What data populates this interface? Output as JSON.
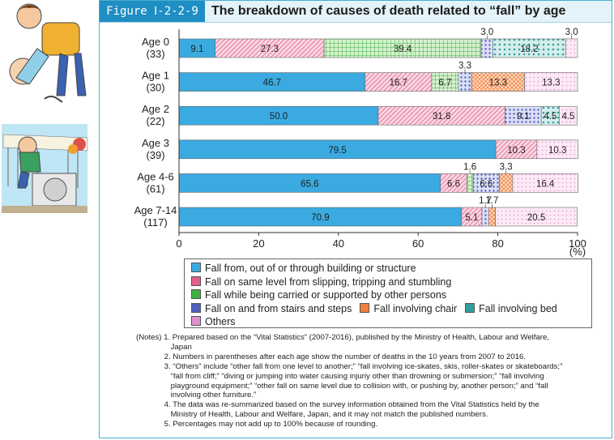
{
  "header": {
    "figure_label": "Figure Ⅰ-2-2-9",
    "title": "The breakdown of causes of death related to “fall” by age"
  },
  "chart_data": {
    "type": "stacked-bar-horizontal",
    "title": "The breakdown of causes of death related to “fall” by age",
    "xlabel": "(%)",
    "xlim": [
      0,
      100
    ],
    "xticks": [
      0,
      20,
      40,
      60,
      80,
      100
    ],
    "categories": [
      {
        "label": "Age 0",
        "count": "(33)"
      },
      {
        "label": "Age 1",
        "count": "(30)"
      },
      {
        "label": "Age 2",
        "count": "(22)"
      },
      {
        "label": "Age 3",
        "count": "(39)"
      },
      {
        "label": "Age 4-6",
        "count": "(61)"
      },
      {
        "label": "Age 7-14",
        "count": "(117)"
      }
    ],
    "series": [
      {
        "name": "Fall from, out of or through building or structure",
        "color": "#3aaae0",
        "pattern": "solid",
        "values": [
          9.1,
          46.7,
          50.0,
          79.5,
          65.6,
          70.9
        ]
      },
      {
        "name": "Fall on same level from slipping, tripping and stumbling",
        "color": "#e0608a",
        "pattern": "diagonal",
        "values": [
          27.3,
          16.7,
          31.8,
          10.3,
          6.6,
          5.1
        ]
      },
      {
        "name": "Fall while being carried or supported by other persons",
        "color": "#40b040",
        "pattern": "grid",
        "values": [
          39.4,
          6.7,
          0,
          0,
          1.6,
          0
        ]
      },
      {
        "name": "Fall on and from stairs and steps",
        "color": "#5060c0",
        "pattern": "dots",
        "values": [
          3.0,
          3.3,
          9.1,
          0,
          6.6,
          1.7
        ]
      },
      {
        "name": "Fall involving chair",
        "color": "#f08040",
        "pattern": "cross",
        "values": [
          0,
          13.3,
          0,
          0,
          3.3,
          1.7
        ]
      },
      {
        "name": "Fall involving bed",
        "color": "#30a0a0",
        "pattern": "dense-dots",
        "values": [
          18.2,
          0,
          4.5,
          0,
          0,
          0
        ]
      },
      {
        "name": "Others",
        "color": "#e090d0",
        "pattern": "sparse-dots",
        "values": [
          3.0,
          13.3,
          4.5,
          10.3,
          16.4,
          20.5
        ]
      }
    ],
    "data_labels": [
      [
        {
          "series": 0,
          "text": "9.1"
        },
        {
          "series": 1,
          "text": "27.3"
        },
        {
          "series": 2,
          "text": "39.4"
        },
        {
          "series": 3,
          "text": "3.0",
          "callout": true
        },
        {
          "series": 5,
          "text": "18.2"
        },
        {
          "series": 6,
          "text": "3.0",
          "callout": true
        }
      ],
      [
        {
          "series": 0,
          "text": "46.7"
        },
        {
          "series": 1,
          "text": "16.7"
        },
        {
          "series": 2,
          "text": "6.7"
        },
        {
          "series": 3,
          "text": "3.3",
          "callout": true
        },
        {
          "series": 4,
          "text": "13.3"
        },
        {
          "series": 6,
          "text": "13.3"
        }
      ],
      [
        {
          "series": 0,
          "text": "50.0"
        },
        {
          "series": 1,
          "text": "31.8"
        },
        {
          "series": 3,
          "text": "9.1"
        },
        {
          "series": 5,
          "text": "4.5"
        },
        {
          "series": 6,
          "text": "4.5"
        }
      ],
      [
        {
          "series": 0,
          "text": "79.5"
        },
        {
          "series": 1,
          "text": "10.3"
        },
        {
          "series": 6,
          "text": "10.3"
        }
      ],
      [
        {
          "series": 0,
          "text": "65.6"
        },
        {
          "series": 1,
          "text": "6.6"
        },
        {
          "series": 2,
          "text": "1.6",
          "callout": true
        },
        {
          "series": 3,
          "text": "6.6"
        },
        {
          "series": 4,
          "text": "3.3",
          "callout": true
        },
        {
          "series": 6,
          "text": "16.4"
        }
      ],
      [
        {
          "series": 0,
          "text": "70.9"
        },
        {
          "series": 1,
          "text": "5.1"
        },
        {
          "series": 3,
          "text": "1.7",
          "callout": true
        },
        {
          "series": 4,
          "text": "1.7",
          "callout": true
        },
        {
          "series": 6,
          "text": "20.5"
        }
      ]
    ]
  },
  "legend": {
    "rows": [
      [
        0
      ],
      [
        1
      ],
      [
        2
      ],
      [
        3,
        4,
        5
      ],
      [
        6
      ]
    ]
  },
  "notes": {
    "lines": [
      "(Notes) 1. Prepared based on the “Vital Statistics” (2007-2016), published by the Ministry of Health, Labour and Welfare,",
      "                Japan",
      "             2. Numbers in parentheses after each age show the number of deaths in the 10 years from 2007 to 2016.",
      "             3. “Others” include “other fall from one level to another;” “fall involving ice-skates, skis, roller-skates or skateboards;”",
      "                “fall from cliff;” “diving or jumping into water causing injuriy other than drowning or submersion;” “fall involving",
      "                playground equipment;” “other fall on same level due to collision with, or pushing by, another person;” and “fall",
      "                involving other furniture.”",
      "             4. The data was re-summarized based on the survey information obtained from the Vital Statistics held by the",
      "                Ministry of Health, Labour and Welfare, Japan, and it may not match the published numbers.",
      "             5. Percentages may not add up to 100% because of rounding."
    ]
  }
}
